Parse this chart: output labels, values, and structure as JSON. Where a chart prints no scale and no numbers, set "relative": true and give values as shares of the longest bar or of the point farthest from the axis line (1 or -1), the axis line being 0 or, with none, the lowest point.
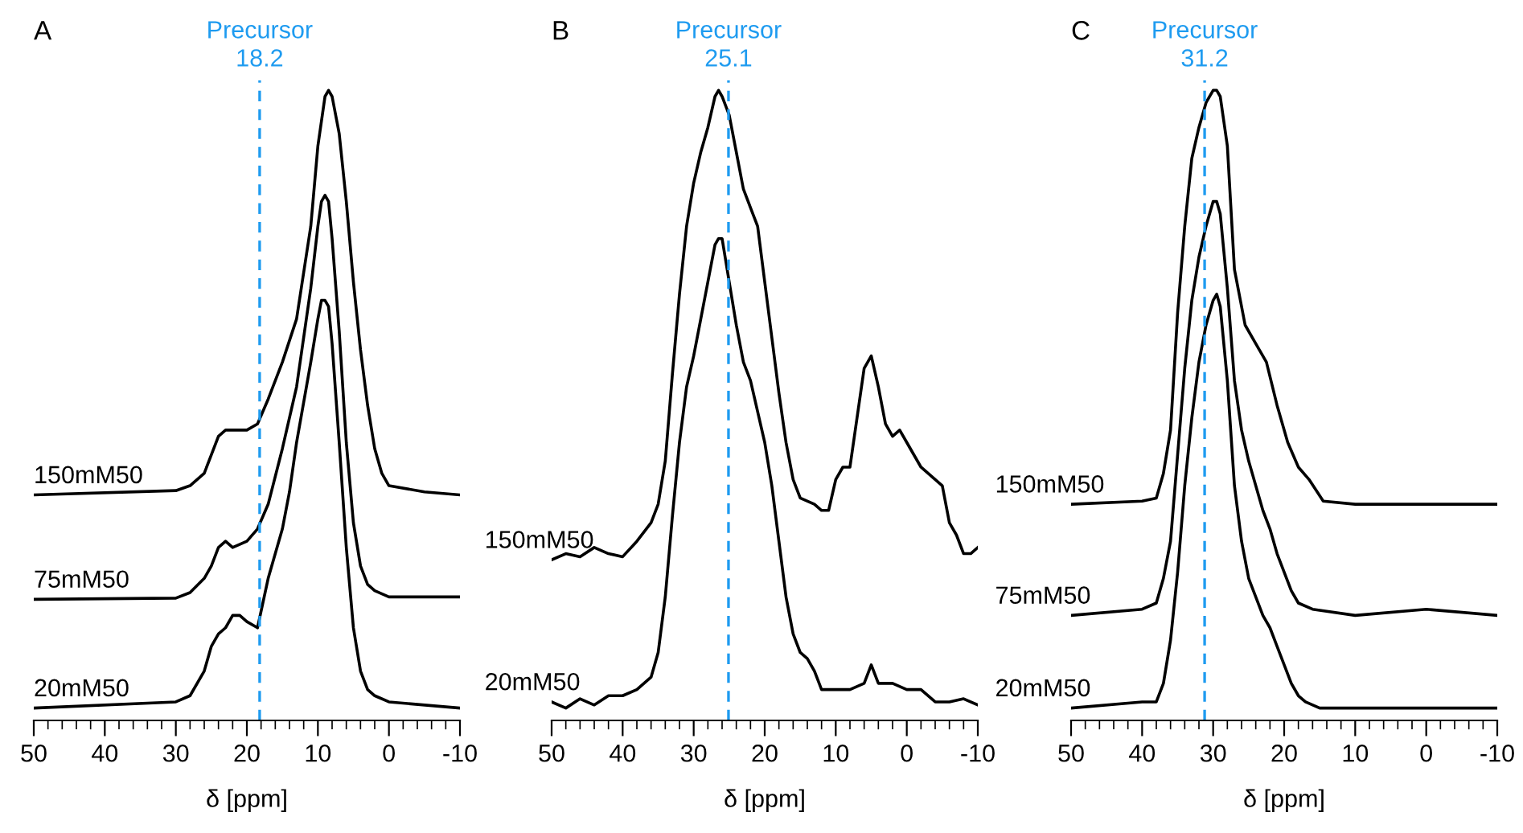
{
  "chart_data": [
    {
      "type": "line",
      "title": "A",
      "xlabel": "δ [ppm]",
      "relative": true,
      "xlim": [
        50,
        -10
      ],
      "tick_labels": "x",
      "grid": false,
      "legend": false,
      "marker": "none",
      "line_style": "solid",
      "xticks": [
        50,
        {
          "value": 48,
          "label": null
        },
        {
          "value": 46,
          "label": null
        },
        {
          "value": 44,
          "label": null
        },
        {
          "value": 42,
          "label": null
        },
        40,
        {
          "value": 38,
          "label": null
        },
        {
          "value": 36,
          "label": null
        },
        {
          "value": 34,
          "label": null
        },
        {
          "value": 32,
          "label": null
        },
        30,
        {
          "value": 28,
          "label": null
        },
        {
          "value": 26,
          "label": null
        },
        {
          "value": 24,
          "label": null
        },
        {
          "value": 22,
          "label": null
        },
        20,
        {
          "value": 18,
          "label": null
        },
        {
          "value": 16,
          "label": null
        },
        {
          "value": 14,
          "label": null
        },
        {
          "value": 12,
          "label": null
        },
        10,
        {
          "value": 8,
          "label": null
        },
        {
          "value": 6,
          "label": null
        },
        {
          "value": 4,
          "label": null
        },
        {
          "value": 2,
          "label": null
        },
        0,
        {
          "value": -2,
          "label": null
        },
        {
          "value": -4,
          "label": null
        },
        {
          "value": -6,
          "label": null
        },
        {
          "value": -8,
          "label": null
        },
        -10
      ],
      "ref_lines": [
        {
          "axis": "x",
          "value": 18.2,
          "label": "Precursor\n18.2",
          "color": "#1e9bf0",
          "line_style": "dashed"
        }
      ],
      "series": [
        {
          "name": "150mM50",
          "color": "#000000",
          "x": [
            50,
            30,
            28,
            26,
            25,
            24,
            23,
            22,
            20,
            18.5,
            17,
            15,
            13,
            11,
            10,
            9,
            8.5,
            8,
            7,
            6,
            5,
            4,
            3,
            2,
            1,
            0,
            -5,
            -10
          ],
          "values": [
            0.345,
            0.352,
            0.36,
            0.38,
            0.41,
            0.44,
            0.45,
            0.45,
            0.45,
            0.46,
            0.5,
            0.56,
            0.63,
            0.78,
            0.91,
            0.99,
            1.0,
            0.99,
            0.93,
            0.82,
            0.69,
            0.58,
            0.49,
            0.42,
            0.38,
            0.36,
            0.35,
            0.345
          ]
        },
        {
          "name": "75mM50",
          "color": "#000000",
          "x": [
            50,
            30,
            28,
            26,
            25,
            24,
            23,
            22,
            20,
            18.5,
            17,
            15,
            13,
            11,
            10,
            9.5,
            9,
            8.5,
            8,
            7,
            6,
            5,
            4,
            3,
            2,
            0,
            -10
          ],
          "values": [
            0.176,
            0.178,
            0.187,
            0.21,
            0.23,
            0.26,
            0.27,
            0.26,
            0.27,
            0.29,
            0.33,
            0.42,
            0.52,
            0.68,
            0.78,
            0.82,
            0.83,
            0.82,
            0.76,
            0.61,
            0.43,
            0.3,
            0.23,
            0.2,
            0.19,
            0.18,
            0.18
          ]
        },
        {
          "name": "20mM50",
          "color": "#000000",
          "x": [
            50,
            30,
            28,
            26,
            25,
            24,
            23,
            22,
            21,
            20,
            18.5,
            17,
            15,
            14,
            13,
            11,
            10,
            9.5,
            9,
            8.5,
            8,
            7,
            6,
            5,
            4,
            3,
            2,
            0,
            -10
          ],
          "values": [
            0.0,
            0.01,
            0.02,
            0.06,
            0.1,
            0.12,
            0.13,
            0.15,
            0.15,
            0.14,
            0.13,
            0.21,
            0.29,
            0.35,
            0.43,
            0.56,
            0.63,
            0.66,
            0.66,
            0.65,
            0.59,
            0.43,
            0.26,
            0.13,
            0.06,
            0.03,
            0.02,
            0.01,
            0.0
          ]
        }
      ]
    },
    {
      "type": "line",
      "title": "B",
      "xlabel": "δ [ppm]",
      "relative": true,
      "xlim": [
        50,
        -10
      ],
      "tick_labels": "x",
      "grid": false,
      "legend": false,
      "marker": "none",
      "line_style": "solid",
      "xticks": [
        50,
        {
          "value": 48,
          "label": null
        },
        {
          "value": 46,
          "label": null
        },
        {
          "value": 44,
          "label": null
        },
        {
          "value": 42,
          "label": null
        },
        40,
        {
          "value": 38,
          "label": null
        },
        {
          "value": 36,
          "label": null
        },
        {
          "value": 34,
          "label": null
        },
        {
          "value": 32,
          "label": null
        },
        30,
        {
          "value": 28,
          "label": null
        },
        {
          "value": 26,
          "label": null
        },
        {
          "value": 24,
          "label": null
        },
        {
          "value": 22,
          "label": null
        },
        20,
        {
          "value": 18,
          "label": null
        },
        {
          "value": 16,
          "label": null
        },
        {
          "value": 14,
          "label": null
        },
        {
          "value": 12,
          "label": null
        },
        10,
        {
          "value": 8,
          "label": null
        },
        {
          "value": 6,
          "label": null
        },
        {
          "value": 4,
          "label": null
        },
        {
          "value": 2,
          "label": null
        },
        0,
        {
          "value": -2,
          "label": null
        },
        {
          "value": -4,
          "label": null
        },
        {
          "value": -6,
          "label": null
        },
        {
          "value": -8,
          "label": null
        },
        -10
      ],
      "ref_lines": [
        {
          "axis": "x",
          "value": 25.1,
          "label": "Precursor\n25.1",
          "color": "#1e9bf0",
          "line_style": "dashed"
        }
      ],
      "series": [
        {
          "name": "150mM50",
          "color": "#000000",
          "x": [
            50,
            48,
            46,
            44,
            42,
            40,
            38,
            36,
            35,
            34,
            33,
            32,
            31,
            30,
            29,
            28,
            27,
            26.5,
            26,
            25,
            24,
            23,
            22,
            21,
            20,
            19,
            18,
            17,
            16,
            15,
            13,
            12,
            11,
            10,
            9,
            8,
            7,
            6,
            5,
            4,
            3,
            2,
            1,
            0,
            -2,
            -4,
            -5,
            -6,
            -7,
            -8,
            -9,
            -10
          ],
          "values": [
            0.24,
            0.25,
            0.245,
            0.26,
            0.25,
            0.245,
            0.27,
            0.3,
            0.33,
            0.4,
            0.54,
            0.67,
            0.78,
            0.85,
            0.9,
            0.94,
            0.99,
            1.0,
            0.99,
            0.96,
            0.9,
            0.84,
            0.81,
            0.78,
            0.69,
            0.6,
            0.51,
            0.43,
            0.37,
            0.34,
            0.33,
            0.32,
            0.32,
            0.37,
            0.39,
            0.39,
            0.47,
            0.55,
            0.57,
            0.52,
            0.46,
            0.44,
            0.45,
            0.43,
            0.39,
            0.37,
            0.36,
            0.3,
            0.28,
            0.25,
            0.25,
            0.26
          ]
        },
        {
          "name": "20mM50",
          "color": "#000000",
          "x": [
            50,
            48,
            46,
            44,
            42,
            40,
            38,
            36,
            35,
            34,
            33,
            32,
            31,
            30,
            29,
            28,
            27,
            26.5,
            26,
            25,
            24,
            23,
            22,
            21,
            20,
            19,
            18,
            17,
            16,
            15,
            14,
            13,
            12,
            11,
            10,
            8,
            6,
            5,
            4,
            2,
            0,
            -2,
            -4,
            -6,
            -8,
            -10
          ],
          "values": [
            0.01,
            0.0,
            0.015,
            0.005,
            0.02,
            0.02,
            0.03,
            0.05,
            0.09,
            0.18,
            0.31,
            0.43,
            0.52,
            0.57,
            0.63,
            0.69,
            0.75,
            0.76,
            0.76,
            0.69,
            0.62,
            0.56,
            0.53,
            0.48,
            0.43,
            0.36,
            0.27,
            0.18,
            0.12,
            0.09,
            0.08,
            0.06,
            0.03,
            0.03,
            0.03,
            0.03,
            0.04,
            0.07,
            0.04,
            0.04,
            0.03,
            0.03,
            0.01,
            0.01,
            0.015,
            0.005
          ]
        }
      ]
    },
    {
      "type": "line",
      "title": "C",
      "xlabel": "δ [ppm]",
      "relative": true,
      "xlim": [
        50,
        -10
      ],
      "tick_labels": "x",
      "grid": false,
      "legend": false,
      "marker": "none",
      "line_style": "solid",
      "xticks": [
        50,
        {
          "value": 48,
          "label": null
        },
        {
          "value": 46,
          "label": null
        },
        {
          "value": 44,
          "label": null
        },
        {
          "value": 42,
          "label": null
        },
        40,
        {
          "value": 38,
          "label": null
        },
        {
          "value": 36,
          "label": null
        },
        {
          "value": 34,
          "label": null
        },
        {
          "value": 32,
          "label": null
        },
        30,
        {
          "value": 28,
          "label": null
        },
        {
          "value": 26,
          "label": null
        },
        {
          "value": 24,
          "label": null
        },
        {
          "value": 22,
          "label": null
        },
        20,
        {
          "value": 18,
          "label": null
        },
        {
          "value": 16,
          "label": null
        },
        {
          "value": 14,
          "label": null
        },
        {
          "value": 12,
          "label": null
        },
        10,
        {
          "value": 8,
          "label": null
        },
        {
          "value": 6,
          "label": null
        },
        {
          "value": 4,
          "label": null
        },
        {
          "value": 2,
          "label": null
        },
        0,
        {
          "value": -2,
          "label": null
        },
        {
          "value": -4,
          "label": null
        },
        {
          "value": -6,
          "label": null
        },
        {
          "value": -8,
          "label": null
        },
        -10
      ],
      "ref_lines": [
        {
          "axis": "x",
          "value": 31.2,
          "label": "Precursor\n31.2",
          "color": "#1e9bf0",
          "line_style": "dashed"
        }
      ],
      "series": [
        {
          "name": "150mM50",
          "color": "#000000",
          "x": [
            50,
            40,
            38,
            37,
            36,
            35,
            34,
            33,
            32,
            31,
            30,
            29.5,
            29,
            28,
            27,
            25.5,
            24,
            22.5,
            21,
            19.5,
            18,
            16.5,
            14.5,
            10,
            0,
            -10
          ],
          "values": [
            0.33,
            0.335,
            0.34,
            0.38,
            0.45,
            0.64,
            0.78,
            0.89,
            0.94,
            0.98,
            1.0,
            1.0,
            0.99,
            0.91,
            0.71,
            0.62,
            0.59,
            0.56,
            0.49,
            0.43,
            0.39,
            0.37,
            0.335,
            0.33,
            0.33,
            0.33
          ]
        },
        {
          "name": "75mM50",
          "color": "#000000",
          "x": [
            50,
            40,
            38,
            37,
            36,
            35,
            34,
            33,
            32,
            31,
            30,
            29.5,
            29,
            28,
            27,
            26,
            25,
            24,
            23,
            22,
            21,
            20,
            19,
            18,
            16,
            10,
            0,
            -10
          ],
          "values": [
            0.15,
            0.16,
            0.17,
            0.21,
            0.27,
            0.41,
            0.55,
            0.66,
            0.73,
            0.78,
            0.82,
            0.82,
            0.8,
            0.68,
            0.53,
            0.45,
            0.4,
            0.36,
            0.32,
            0.29,
            0.25,
            0.22,
            0.19,
            0.17,
            0.16,
            0.15,
            0.16,
            0.15
          ]
        },
        {
          "name": "20mM50",
          "color": "#000000",
          "x": [
            50,
            40,
            38,
            37,
            36,
            35,
            34,
            33,
            32,
            31,
            30,
            29.5,
            29,
            28,
            27,
            26,
            25,
            24,
            23,
            22,
            21,
            20,
            19,
            18,
            17,
            15,
            10,
            0,
            -5,
            -10
          ],
          "values": [
            0.0,
            0.01,
            0.01,
            0.04,
            0.11,
            0.22,
            0.36,
            0.47,
            0.56,
            0.62,
            0.66,
            0.67,
            0.65,
            0.53,
            0.36,
            0.27,
            0.21,
            0.18,
            0.15,
            0.13,
            0.1,
            0.07,
            0.04,
            0.02,
            0.01,
            0.0,
            0.0,
            0.0,
            0.0,
            0.0
          ]
        }
      ]
    }
  ]
}
